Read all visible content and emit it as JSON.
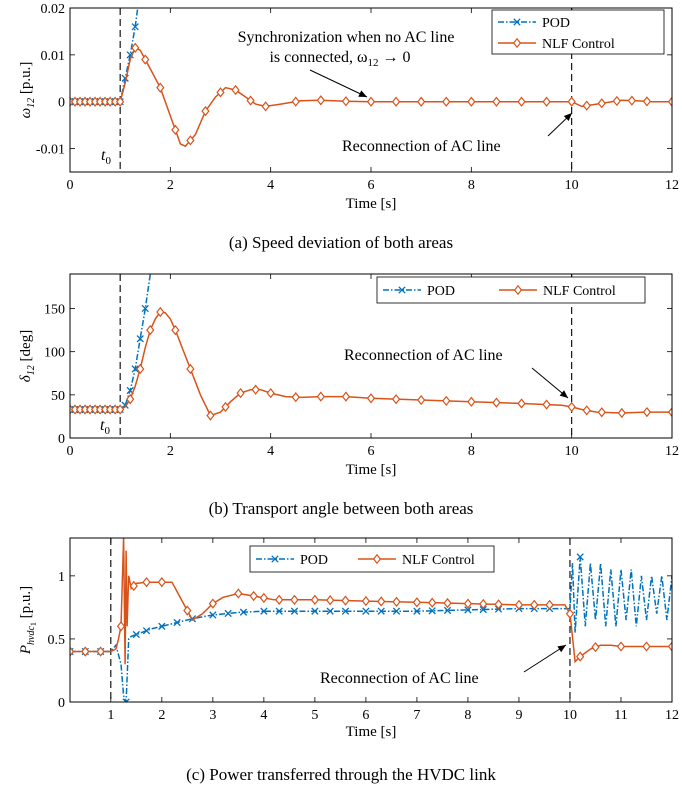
{
  "colors": {
    "pod": "#0072BD",
    "nlf": "#D95319",
    "axis": "#000000",
    "event_line": "#000000"
  },
  "chart_data": [
    {
      "type": "line",
      "caption": "(a) Speed deviation of both areas",
      "ylabel_base": "ω",
      "ylabel_sub": "12",
      "ylabel_unit": " [p.u.]",
      "xlabel": "Time [s]",
      "xlim": [
        0,
        12
      ],
      "ylim": [
        -0.015,
        0.02
      ],
      "xticks": [
        0,
        2,
        4,
        6,
        8,
        10,
        12
      ],
      "xtick_labels": [
        "0",
        "2",
        "4",
        "6",
        "8",
        "10",
        "12"
      ],
      "yticks": [
        -0.01,
        0,
        0.01,
        0.02
      ],
      "ytick_labels": [
        "-0.01",
        "0",
        "0.01",
        "0.02"
      ],
      "legend_position": "top-right",
      "event_lines": [
        1,
        10
      ],
      "annotations": [
        {
          "text": "t",
          "sub": "0"
        },
        {
          "text": "Synchronization when no AC line",
          "text2": "is connected, ω",
          "sub": "12",
          "tail": " → 0"
        },
        {
          "text": "Reconnection of AC line"
        }
      ],
      "series": [
        {
          "name": "POD",
          "marker": "x",
          "x": [
            0,
            0.1,
            0.2,
            0.3,
            0.4,
            0.5,
            0.6,
            0.7,
            0.8,
            0.9,
            1.0,
            1.1,
            1.2,
            1.3,
            1.35
          ],
          "y": [
            0,
            0,
            0,
            0,
            0,
            0,
            0,
            0,
            0,
            0,
            0,
            0.005,
            0.01,
            0.016,
            0.02
          ]
        },
        {
          "name": "NLF Control",
          "marker": "diamond",
          "x": [
            0,
            0.2,
            0.4,
            0.6,
            0.8,
            1.0,
            1.1,
            1.2,
            1.3,
            1.4,
            1.5,
            1.6,
            1.8,
            2.0,
            2.2,
            2.3,
            2.5,
            2.7,
            2.9,
            3.1,
            3.3,
            3.5,
            3.7,
            3.9,
            4.2,
            4.6,
            5.0,
            5.5,
            6.0,
            7.0,
            8.0,
            9.0,
            10.0,
            10.2,
            10.5,
            10.8,
            11.0,
            11.3,
            11.6,
            12.0
          ],
          "y": [
            0,
            0,
            0,
            0,
            0,
            0,
            0.004,
            0.009,
            0.0115,
            0.011,
            0.009,
            0.007,
            0.003,
            -0.003,
            -0.009,
            -0.0095,
            -0.007,
            -0.002,
            0.001,
            0.003,
            0.0025,
            0.001,
            -0.0005,
            -0.001,
            -0.0005,
            0.0002,
            0.0003,
            0.0001,
            0,
            0,
            0,
            0,
            0,
            -0.001,
            -0.0005,
            0,
            0.0003,
            0.0002,
            0,
            0
          ]
        }
      ],
      "marker_x": {
        "pod": [
          0,
          0.1,
          0.2,
          0.3,
          0.4,
          0.5,
          0.6,
          0.7,
          0.8,
          0.9,
          1.0,
          1.1,
          1.2,
          1.3
        ],
        "nlf": [
          0,
          0.1,
          0.2,
          0.3,
          0.4,
          0.5,
          0.6,
          0.7,
          0.8,
          0.9,
          1.0,
          1.3,
          1.5,
          1.8,
          2.1,
          2.4,
          2.7,
          3.0,
          3.3,
          3.6,
          3.9,
          4.5,
          5.0,
          5.5,
          6.0,
          6.5,
          7.0,
          7.5,
          8.0,
          8.5,
          9.0,
          9.5,
          10.0,
          10.3,
          10.6,
          10.9,
          11.2,
          11.5,
          12.0
        ]
      }
    },
    {
      "type": "line",
      "caption": "(b) Transport angle between both areas",
      "ylabel_base": "δ",
      "ylabel_sub": "12",
      "ylabel_unit": " [deg]",
      "xlabel": "Time [s]",
      "xlim": [
        0,
        12
      ],
      "ylim": [
        0,
        190
      ],
      "xticks": [
        0,
        2,
        4,
        6,
        8,
        10,
        12
      ],
      "xtick_labels": [
        "0",
        "2",
        "4",
        "6",
        "8",
        "10",
        "12"
      ],
      "yticks": [
        0,
        50,
        100,
        150
      ],
      "ytick_labels": [
        "0",
        "50",
        "100",
        "150"
      ],
      "legend_position": "top-right",
      "event_lines": [
        1,
        10
      ],
      "annotations": [
        {
          "text": "t",
          "sub": "0"
        },
        {
          "text": "Reconnection of AC line"
        }
      ],
      "series": [
        {
          "name": "POD",
          "marker": "x",
          "x": [
            0,
            0.2,
            0.4,
            0.6,
            0.8,
            1.0,
            1.1,
            1.2,
            1.3,
            1.4,
            1.5,
            1.6
          ],
          "y": [
            33,
            33,
            33,
            33,
            33,
            33,
            38,
            55,
            80,
            115,
            150,
            190
          ]
        },
        {
          "name": "NLF Control",
          "marker": "diamond",
          "x": [
            0,
            0.5,
            1.0,
            1.1,
            1.2,
            1.3,
            1.4,
            1.5,
            1.6,
            1.7,
            1.8,
            1.9,
            2.0,
            2.1,
            2.2,
            2.4,
            2.6,
            2.8,
            3.0,
            3.2,
            3.4,
            3.6,
            3.8,
            4.0,
            4.3,
            4.6,
            5.0,
            5.5,
            6.0,
            7.0,
            8.0,
            9.0,
            9.8,
            10.0,
            10.2,
            10.5,
            11.0,
            11.5,
            12.0
          ],
          "y": [
            33,
            33,
            33,
            36,
            45,
            60,
            80,
            105,
            125,
            138,
            146,
            145,
            138,
            125,
            110,
            80,
            50,
            26,
            30,
            42,
            52,
            56,
            56,
            52,
            48,
            47,
            48,
            48,
            46,
            44,
            42,
            40,
            38,
            36,
            33,
            30,
            29,
            30,
            30
          ]
        }
      ],
      "marker_x": {
        "pod": [
          0,
          0.1,
          0.2,
          0.3,
          0.4,
          0.5,
          0.6,
          0.7,
          0.8,
          0.9,
          1.0,
          1.1,
          1.2,
          1.3,
          1.4,
          1.5
        ],
        "nlf": [
          0,
          0.1,
          0.2,
          0.3,
          0.4,
          0.5,
          0.6,
          0.7,
          0.8,
          0.9,
          1.0,
          1.2,
          1.4,
          1.6,
          1.8,
          2.1,
          2.4,
          2.8,
          3.1,
          3.4,
          3.7,
          4.0,
          4.5,
          5.0,
          5.5,
          6.0,
          6.5,
          7.0,
          7.5,
          8.0,
          8.5,
          9.0,
          9.5,
          10.0,
          10.3,
          10.6,
          11.0,
          11.5,
          12.0
        ]
      }
    },
    {
      "type": "line",
      "caption": "(c) Power transferred through the HVDC link",
      "ylabel_base": "P",
      "ylabel_sub": "hvdc",
      "ylabel_subsub": "1",
      "ylabel_unit": " [p.u.]",
      "xlabel": "Time [s]",
      "xlim": [
        0.2,
        12
      ],
      "ylim": [
        0,
        1.3
      ],
      "xticks": [
        1,
        2,
        3,
        4,
        5,
        6,
        7,
        8,
        9,
        10,
        11,
        12
      ],
      "xtick_labels": [
        "1",
        "2",
        "3",
        "4",
        "5",
        "6",
        "7",
        "8",
        "9",
        "10",
        "11",
        "12"
      ],
      "yticks": [
        0,
        0.5,
        1
      ],
      "ytick_labels": [
        "0",
        "0.5",
        "1"
      ],
      "legend_position": "top-center",
      "event_lines": [
        1,
        10
      ],
      "annotations": [
        {
          "text": "Reconnection of AC line"
        }
      ],
      "series": [
        {
          "name": "POD",
          "marker": "x",
          "x": [
            0.2,
            0.6,
            1.0,
            1.1,
            1.2,
            1.25,
            1.3,
            1.35,
            1.4,
            1.6,
            1.8,
            2.0,
            2.3,
            2.6,
            3.0,
            3.5,
            4.0,
            5.0,
            6.0,
            7.0,
            8.0,
            9.0,
            10.0,
            10.05,
            10.1,
            10.2,
            10.3,
            10.4,
            10.5,
            10.6,
            10.7,
            10.8,
            10.9,
            11.0,
            11.1,
            11.2,
            11.3,
            11.4,
            11.5,
            11.6,
            11.7,
            11.8,
            11.9,
            12.0
          ],
          "y": [
            0.4,
            0.4,
            0.4,
            0.45,
            0.3,
            0.05,
            0.0,
            0.5,
            0.52,
            0.55,
            0.58,
            0.6,
            0.63,
            0.66,
            0.69,
            0.71,
            0.72,
            0.72,
            0.72,
            0.72,
            0.73,
            0.74,
            0.74,
            1.1,
            0.55,
            1.15,
            0.6,
            1.1,
            0.65,
            1.1,
            0.6,
            1.05,
            0.6,
            1.05,
            0.65,
            1.05,
            0.6,
            1.0,
            0.65,
            1.0,
            0.7,
            1.0,
            0.65,
            1.0
          ]
        },
        {
          "name": "NLF Control",
          "marker": "diamond",
          "x": [
            0.2,
            0.6,
            1.0,
            1.1,
            1.15,
            1.2,
            1.25,
            1.28,
            1.3,
            1.32,
            1.35,
            1.4,
            1.5,
            1.7,
            2.0,
            2.2,
            2.4,
            2.6,
            2.8,
            3.0,
            3.2,
            3.5,
            3.8,
            4.2,
            5.0,
            6.0,
            7.0,
            8.0,
            9.0,
            9.9,
            10.0,
            10.1,
            10.2,
            10.4,
            10.6,
            10.8,
            11.0,
            11.4,
            11.8,
            12.0
          ],
          "y": [
            0.4,
            0.4,
            0.4,
            0.42,
            0.5,
            0.6,
            1.3,
            0.3,
            1.2,
            0.6,
            1.0,
            0.9,
            0.94,
            0.95,
            0.95,
            0.95,
            0.8,
            0.65,
            0.7,
            0.78,
            0.83,
            0.86,
            0.84,
            0.81,
            0.81,
            0.8,
            0.79,
            0.78,
            0.77,
            0.77,
            0.7,
            0.32,
            0.36,
            0.42,
            0.45,
            0.45,
            0.44,
            0.44,
            0.44,
            0.44
          ]
        }
      ],
      "marker_x": {
        "pod": [
          0.2,
          0.5,
          0.8,
          1.3,
          1.5,
          1.7,
          2.0,
          2.3,
          2.6,
          3.0,
          3.3,
          3.6,
          4.0,
          4.3,
          4.6,
          5.0,
          5.3,
          5.6,
          6.0,
          6.3,
          6.6,
          7.0,
          7.3,
          7.6,
          8.0,
          8.3,
          8.6,
          9.0,
          9.3,
          9.6,
          10.2
        ],
        "nlf": [
          0.2,
          0.5,
          0.8,
          1.2,
          1.45,
          1.7,
          2.0,
          2.5,
          3.0,
          3.5,
          3.8,
          4.0,
          4.3,
          4.6,
          5.0,
          5.3,
          5.6,
          6.0,
          6.3,
          6.6,
          7.0,
          7.3,
          7.6,
          8.0,
          8.3,
          8.6,
          9.0,
          9.3,
          9.6,
          10.0,
          10.2,
          10.5,
          11.0,
          11.5,
          12.0
        ]
      }
    }
  ]
}
